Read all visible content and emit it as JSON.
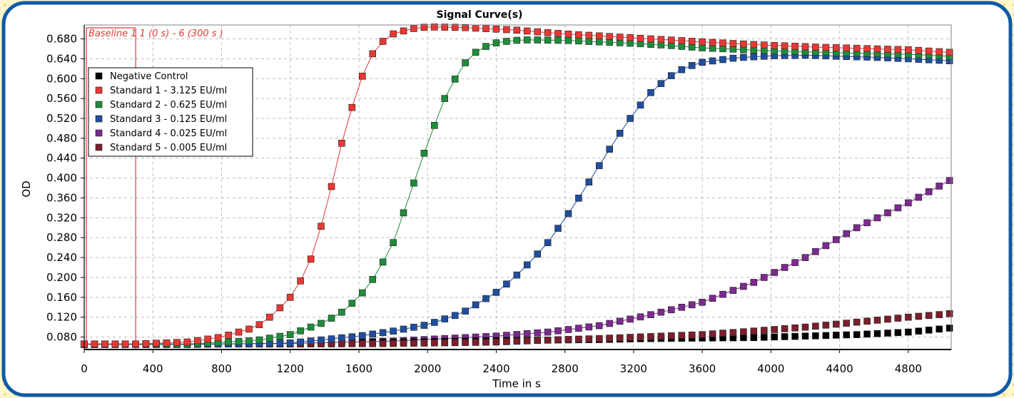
{
  "colors": {
    "frame_border": "#0d5aa7",
    "frame_bg_outer": "#fff5c2",
    "grid": "#bdbdbd",
    "baseline": "#e53935"
  },
  "chart_data": {
    "type": "line",
    "title": "Signal Curve(s)",
    "xlabel": "Time in s",
    "ylabel": "OD",
    "xlim": [
      0,
      5050
    ],
    "ylim": [
      0.055,
      0.708
    ],
    "grid": true,
    "legend_position": "top-left",
    "x_ticks": [
      0,
      400,
      800,
      1200,
      1600,
      2000,
      2400,
      2800,
      3200,
      3600,
      4000,
      4400,
      4800
    ],
    "x_tick_labels": [
      "0",
      "400",
      "800",
      "1200",
      "1600",
      "2000",
      "2400",
      "2800",
      "3200",
      "3600",
      "4000",
      "4400",
      "4800"
    ],
    "y_ticks": [
      0.08,
      0.12,
      0.16,
      0.2,
      0.24,
      0.28,
      0.32,
      0.36,
      0.4,
      0.44,
      0.48,
      0.52,
      0.56,
      0.6,
      0.64,
      0.68
    ],
    "y_tick_labels": [
      "0.080",
      "0.120",
      "0.160",
      "0.200",
      "0.240",
      "0.280",
      "0.320",
      "0.360",
      "0.400",
      "0.440",
      "0.480",
      "0.520",
      "0.560",
      "0.600",
      "0.640",
      "0.680"
    ],
    "baseline_annotation": {
      "label": "Baseline 1 1 (0 s) - 6 (300 s )",
      "x_start": 0,
      "x_end": 300
    },
    "time_sampling": {
      "start": 0,
      "step": 60,
      "end": 5040
    },
    "series": [
      {
        "name": "Negative Control",
        "color": "#000000",
        "connected": false,
        "x": [
          0,
          600,
          1200,
          1800,
          2400,
          2700,
          3000,
          3300,
          3600,
          3900,
          4200,
          4500,
          4800,
          5040
        ],
        "y": [
          0.065,
          0.066,
          0.068,
          0.07,
          0.073,
          0.074,
          0.075,
          0.077,
          0.078,
          0.079,
          0.082,
          0.085,
          0.09,
          0.098
        ]
      },
      {
        "name": "Standard 1 - 3.125 EU/ml",
        "color": "#e53935",
        "connected": true,
        "x": [
          0,
          300,
          600,
          800,
          1000,
          1100,
          1200,
          1300,
          1400,
          1500,
          1600,
          1700,
          1800,
          1900,
          2000,
          2200,
          2500,
          2800,
          3100,
          3400,
          3700,
          4000,
          4300,
          4600,
          4800,
          5040
        ],
        "y": [
          0.066,
          0.066,
          0.07,
          0.08,
          0.1,
          0.125,
          0.16,
          0.215,
          0.325,
          0.47,
          0.59,
          0.665,
          0.69,
          0.7,
          0.704,
          0.703,
          0.698,
          0.69,
          0.684,
          0.678,
          0.672,
          0.667,
          0.663,
          0.66,
          0.658,
          0.653
        ]
      },
      {
        "name": "Standard 2 - 0.625 EU/ml",
        "color": "#1e8c3a",
        "connected": true,
        "x": [
          0,
          600,
          1000,
          1200,
          1400,
          1500,
          1600,
          1700,
          1800,
          1900,
          2000,
          2100,
          2200,
          2300,
          2400,
          2500,
          2600,
          2800,
          3000,
          3200,
          3400,
          3600,
          3800,
          4000,
          4400,
          4800,
          5040
        ],
        "y": [
          0.066,
          0.066,
          0.073,
          0.085,
          0.11,
          0.13,
          0.16,
          0.205,
          0.27,
          0.37,
          0.47,
          0.56,
          0.625,
          0.66,
          0.672,
          0.677,
          0.678,
          0.677,
          0.674,
          0.671,
          0.667,
          0.662,
          0.659,
          0.656,
          0.652,
          0.649,
          0.645
        ]
      },
      {
        "name": "Standard 3 - 0.125 EU/ml",
        "color": "#1f4e9e",
        "connected": true,
        "x": [
          0,
          600,
          1200,
          1600,
          1800,
          2000,
          2200,
          2400,
          2500,
          2600,
          2700,
          2800,
          2900,
          3000,
          3100,
          3200,
          3300,
          3400,
          3500,
          3600,
          3800,
          4000,
          4200,
          4400,
          4600,
          4800,
          5040
        ],
        "y": [
          0.065,
          0.065,
          0.068,
          0.082,
          0.092,
          0.105,
          0.128,
          0.17,
          0.198,
          0.232,
          0.27,
          0.318,
          0.37,
          0.425,
          0.48,
          0.53,
          0.572,
          0.602,
          0.622,
          0.633,
          0.642,
          0.646,
          0.647,
          0.645,
          0.643,
          0.64,
          0.636
        ]
      },
      {
        "name": "Standard 4 - 0.025 EU/ml",
        "color": "#7b2a8e",
        "connected": true,
        "x": [
          0,
          600,
          1200,
          1800,
          2400,
          2700,
          3000,
          3300,
          3600,
          3900,
          4200,
          4500,
          4800,
          5040
        ],
        "y": [
          0.066,
          0.066,
          0.067,
          0.072,
          0.082,
          0.09,
          0.103,
          0.125,
          0.15,
          0.19,
          0.24,
          0.3,
          0.35,
          0.395
        ]
      },
      {
        "name": "Standard 5 - 0.005 EU/ml",
        "color": "#7a1f2b",
        "connected": false,
        "x": [
          0,
          600,
          1200,
          1800,
          2400,
          2700,
          3000,
          3300,
          3600,
          3900,
          4200,
          4500,
          4800,
          5040
        ],
        "y": [
          0.066,
          0.066,
          0.066,
          0.067,
          0.07,
          0.074,
          0.077,
          0.081,
          0.085,
          0.092,
          0.1,
          0.11,
          0.12,
          0.127
        ]
      }
    ]
  }
}
